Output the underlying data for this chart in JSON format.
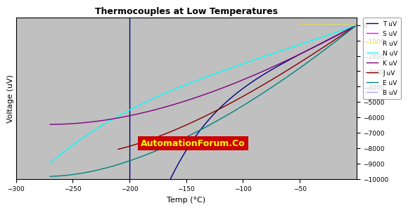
{
  "title": "Thermocouples at Low Temperatures",
  "xlabel": "Temp (°C)",
  "ylabel": "Voltage (uV)",
  "xlim": [
    -300,
    0
  ],
  "ylim": [
    -10000,
    500
  ],
  "bg_color": "#c0c0c0",
  "series": {
    "T uV": {
      "color": "#000080"
    },
    "S uV": {
      "color": "#ff00ff"
    },
    "R uV": {
      "color": "#ffff00"
    },
    "N uV": {
      "color": "#00ffff"
    },
    "K uV": {
      "color": "#800080"
    },
    "J uV": {
      "color": "#800000"
    },
    "E uV": {
      "color": "#008080"
    },
    "B uV": {
      "color": "#aaaaff"
    }
  },
  "watermark_text": "AutomationForum.Co",
  "watermark_bg": "#cc0000",
  "watermark_color": "#ffff00",
  "yticks": [
    0,
    -1000,
    -2000,
    -3000,
    -4000,
    -5000,
    -6000,
    -7000,
    -8000,
    -9000,
    -10000
  ],
  "xticks": [
    -300,
    -250,
    -200,
    -150,
    -100,
    -50
  ]
}
